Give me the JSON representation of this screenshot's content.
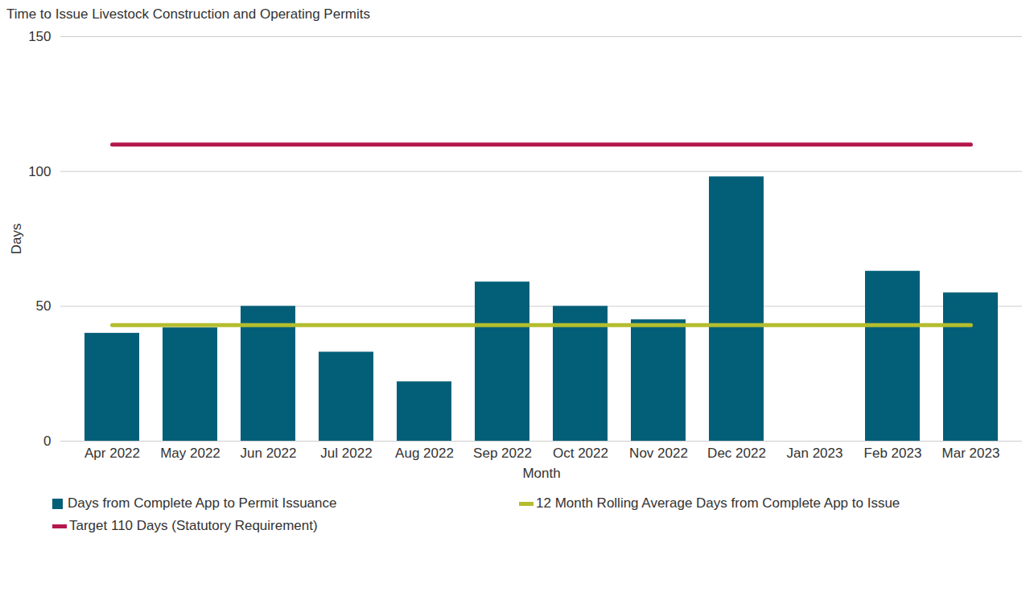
{
  "chart_data": {
    "type": "bar",
    "title": "Time to Issue Livestock Construction and Operating Permits",
    "x_label": "Month",
    "y_label": "Days",
    "categories": [
      "Apr 2022",
      "May 2022",
      "Jun 2022",
      "Jul 2022",
      "Aug 2022",
      "Sep 2022",
      "Oct 2022",
      "Nov 2022",
      "Dec 2022",
      "Jan 2023",
      "Feb 2023",
      "Mar 2023"
    ],
    "series": [
      {
        "name": "Days from Complete App to Permit Issuance",
        "type": "bar",
        "color": "#035f78",
        "values": [
          40,
          42,
          50,
          33,
          22,
          59,
          50,
          45,
          98,
          null,
          63,
          55
        ]
      },
      {
        "name": "12 Month Rolling Average Days from Complete App to Issue",
        "type": "line",
        "color": "#b4bd2f",
        "values": [
          43,
          43,
          43,
          43,
          43,
          43,
          43,
          43,
          43,
          43,
          43,
          43
        ]
      },
      {
        "name": "Target 110 Days (Statutory Requirement)",
        "type": "line",
        "color": "#b5174b",
        "values": [
          110,
          110,
          110,
          110,
          110,
          110,
          110,
          110,
          110,
          110,
          110,
          110
        ]
      }
    ],
    "ylim": [
      0,
      150
    ],
    "yticks": [
      0,
      50,
      100,
      150
    ],
    "grid": true,
    "legend": "bottom"
  }
}
